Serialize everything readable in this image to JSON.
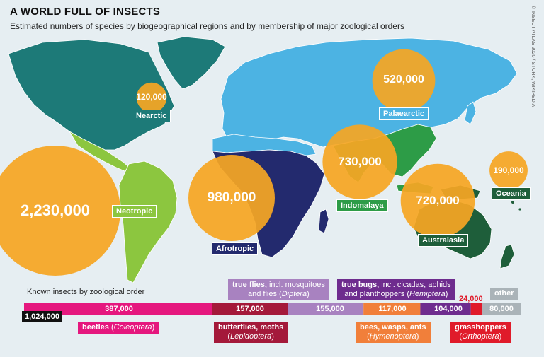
{
  "header": {
    "title": "A WORLD FULL OF INSECTS",
    "subtitle": "Estimated numbers of species by biogeographical regions and by membership of major zoological orders",
    "credit": "© INSECT ATLAS 2020 / STORK, WIKIPEDIA"
  },
  "colors": {
    "bubble": "#f5a623",
    "ocean": "#e6eef2",
    "nearctic": "#1d7a78",
    "neotropic": "#8cc63f",
    "palaearctic": "#4cb3e3",
    "afrotropic": "#232a6e",
    "indomalaya": "#2d9c47",
    "australasia": "#1e5e3a",
    "beetles": "#e5177e",
    "butterflies": "#a4193a",
    "flies": "#a882c0",
    "bees": "#f17f3a",
    "bugs": "#6e2c8e",
    "grasshoppers": "#e01b2a",
    "other": "#aab3b8"
  },
  "chart_data": [
    {
      "type": "bubble-map",
      "regions": [
        {
          "name": "Nearctic",
          "value": "120,000"
        },
        {
          "name": "Neotropic",
          "value": "2,230,000"
        },
        {
          "name": "Palaearctic",
          "value": "520,000"
        },
        {
          "name": "Afrotropic",
          "value": "980,000"
        },
        {
          "name": "Indomalaya",
          "value": "730,000"
        },
        {
          "name": "Australasia",
          "value": "720,000"
        },
        {
          "name": "Oceania",
          "value": "190,000"
        }
      ]
    },
    {
      "type": "bar",
      "title": "Known insects by zoological order",
      "total": "1,024,000",
      "orders": [
        {
          "value_text": "387,000",
          "value": 387000
        },
        {
          "value_text": "157,000",
          "value": 157000
        },
        {
          "value_text": "155,000",
          "value": 155000
        },
        {
          "value_text": "117,000",
          "value": 117000
        },
        {
          "value_text": "104,000",
          "value": 104000
        },
        {
          "value_text": "24,000",
          "value": 24000
        },
        {
          "value_text": "80,000",
          "value": 80000
        }
      ],
      "labels": {
        "beetles": {
          "common": "beetles",
          "latin": "Coleoptera"
        },
        "butterflies": {
          "common": "butterflies, moths",
          "latin": "Lepidoptera"
        },
        "flies": {
          "common": "true flies,",
          "rest": " incl. mosquitoes",
          "line2": "and flies",
          "latin": "Diptera"
        },
        "bees": {
          "common": "bees, wasps, ants",
          "latin": "Hymenoptera"
        },
        "bugs": {
          "common": "true bugs,",
          "rest": " incl. cicadas, aphids",
          "line2": "and planthoppers",
          "latin": "Hemiptera"
        },
        "grasshoppers": {
          "common": "grasshoppers",
          "latin": "Orthoptera"
        },
        "other": {
          "common": "other"
        }
      }
    }
  ]
}
